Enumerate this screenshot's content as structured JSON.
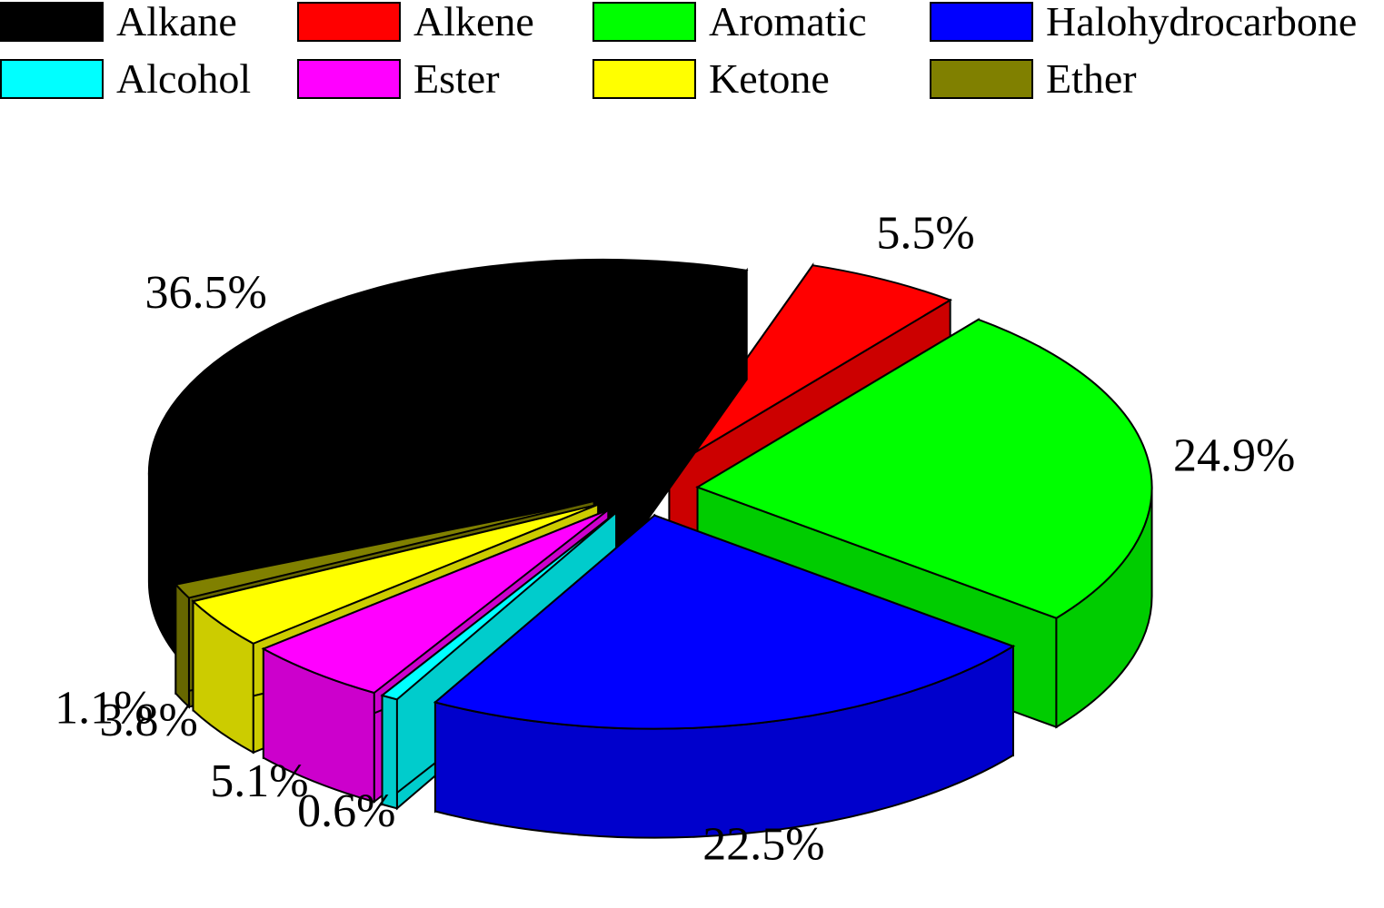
{
  "chart_data": {
    "type": "pie",
    "style": "3d-exploded",
    "legend_position": "top",
    "slices": [
      {
        "label": "Alkane",
        "value": 36.5,
        "value_label": "36.5%",
        "color": "#000000"
      },
      {
        "label": "Alkene",
        "value": 5.5,
        "value_label": "5.5%",
        "color": "#ff0000"
      },
      {
        "label": "Aromatic",
        "value": 24.9,
        "value_label": "24.9%",
        "color": "#00ff00"
      },
      {
        "label": "Halohydrocarbone",
        "value": 22.5,
        "value_label": "22.5%",
        "color": "#0000ff"
      },
      {
        "label": "Alcohol",
        "value": 0.6,
        "value_label": "0.6%",
        "color": "#00ffff"
      },
      {
        "label": "Ester",
        "value": 5.1,
        "value_label": "5.1%",
        "color": "#ff00ff"
      },
      {
        "label": "Ketone",
        "value": 3.8,
        "value_label": "3.8%",
        "color": "#ffff00"
      },
      {
        "label": "Ether",
        "value": 1.1,
        "value_label": "1.1%",
        "color": "#808000"
      }
    ]
  }
}
